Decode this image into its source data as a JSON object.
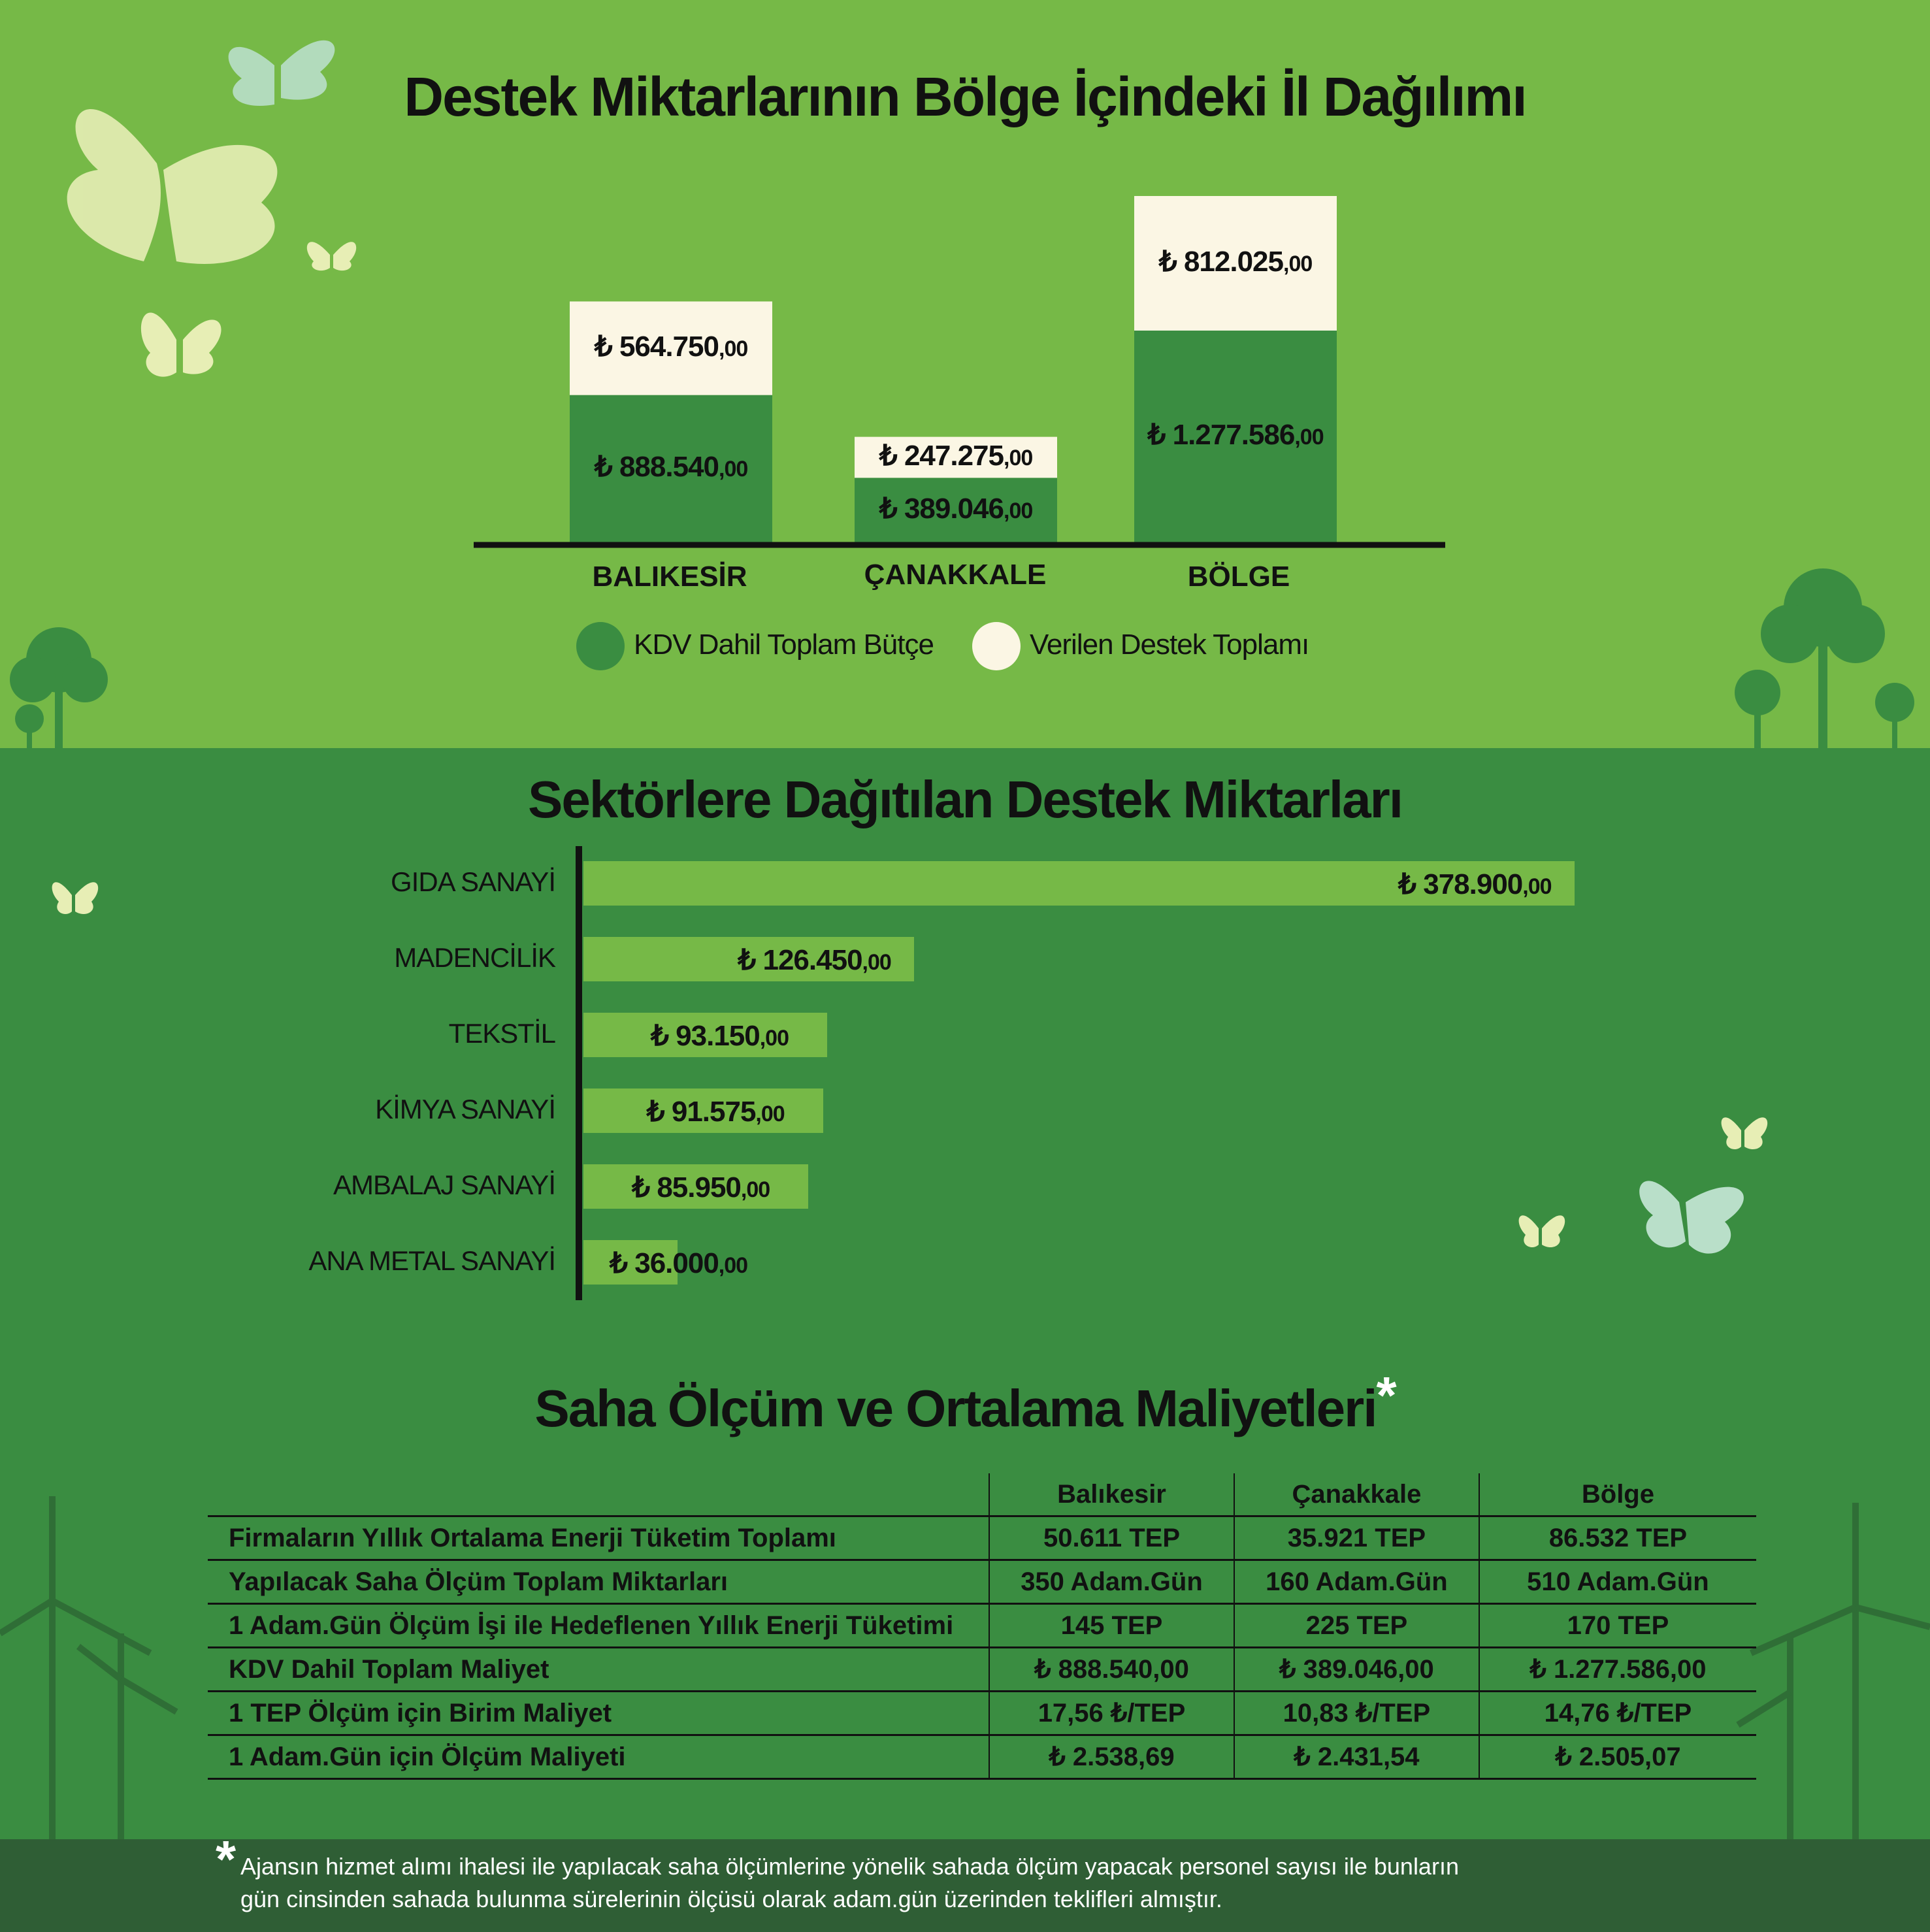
{
  "colors": {
    "light_green": "#76b947",
    "dark_green": "#3a8d41",
    "cream": "#fbf6e4",
    "footer": "#2f5e35",
    "sector_bar": "#76b947"
  },
  "chart_data": [
    {
      "type": "bar",
      "stacked": true,
      "title": "Destek Miktarlarının Bölge İçindeki İl Dağılımı",
      "categories": [
        "BALIKESİR",
        "ÇANAKKALE",
        "BÖLGE"
      ],
      "series": [
        {
          "name": "KDV Dahil Toplam Bütçe",
          "values": [
            888540,
            389046,
            1277586
          ],
          "labels": [
            "888.540",
            "389.046",
            "1.277.586"
          ],
          "color": "#3a8d41"
        },
        {
          "name": "Verilen Destek Toplamı",
          "values": [
            564750,
            247275,
            812025
          ],
          "labels": [
            "564.750",
            "247.275",
            "812.025"
          ],
          "color": "#fbf6e4"
        }
      ],
      "currency": "₺",
      "decimals": ",00",
      "legend": "bottom"
    },
    {
      "type": "bar",
      "orientation": "horizontal",
      "title": "Sektörlere Dağıtılan Destek Miktarları",
      "categories": [
        "GIDA SANAYİ",
        "MADENCİLİK",
        "TEKSTİL",
        "KİMYA SANAYİ",
        "AMBALAJ SANAYİ",
        "ANA METAL SANAYİ"
      ],
      "values": [
        378900,
        126450,
        93150,
        91575,
        85950,
        36000
      ],
      "labels": [
        "378.900",
        "126.450",
        "93.150",
        "91.575",
        "85.950",
        "36.000"
      ],
      "currency": "₺",
      "decimals": ",00"
    },
    {
      "type": "table",
      "title": "Saha Ölçüm ve Ortalama Maliyetleri",
      "title_mark": "*",
      "columns": [
        "",
        "Balıkesir",
        "Çanakkale",
        "Bölge"
      ],
      "rows": [
        [
          "Firmaların Yıllık Ortalama Enerji Tüketim Toplamı",
          "50.611 TEP",
          "35.921 TEP",
          "86.532 TEP"
        ],
        [
          "Yapılacak Saha Ölçüm Toplam Miktarları",
          "350 Adam.Gün",
          "160 Adam.Gün",
          "510 Adam.Gün"
        ],
        [
          "1 Adam.Gün Ölçüm İşi ile Hedeflenen Yıllık Enerji Tüketimi",
          "145 TEP",
          "225 TEP",
          "170 TEP"
        ],
        [
          "KDV Dahil Toplam Maliyet",
          "₺ 888.540,00",
          "₺ 389.046,00",
          "₺ 1.277.586,00"
        ],
        [
          "1 TEP Ölçüm için Birim Maliyet",
          "17,56 ₺/TEP",
          "10,83 ₺/TEP",
          "14,76 ₺/TEP"
        ],
        [
          "1 Adam.Gün için Ölçüm Maliyeti",
          "₺ 2.538,69",
          "₺ 2.431,54",
          "₺ 2.505,07"
        ]
      ]
    }
  ],
  "footnote": {
    "mark": "*",
    "line1": "Ajansın hizmet alımı ihalesi ile yapılacak saha ölçümlerine yönelik sahada ölçüm yapacak personel sayısı ile bunların",
    "line2": "gün cinsinden sahada bulunma sürelerinin ölçüsü olarak adam.gün üzerinden teklifleri almıştır."
  }
}
